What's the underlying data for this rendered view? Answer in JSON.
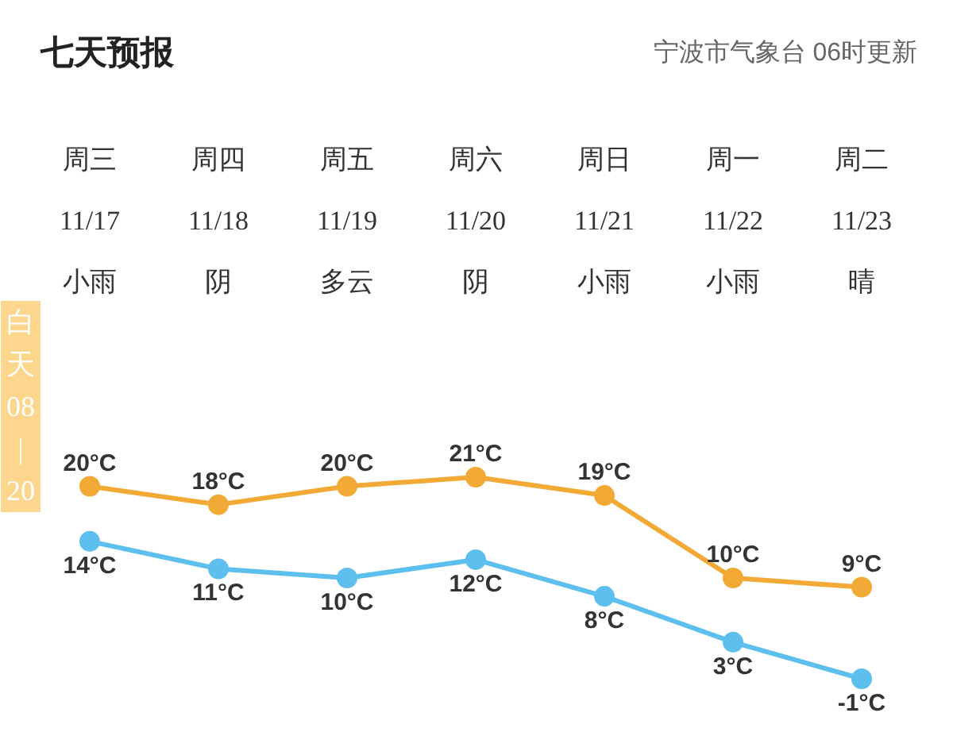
{
  "chart_data": {
    "type": "line",
    "title": "七天预报",
    "subtitle": "宁波市气象台 06时更新",
    "categories": [
      "周三\n11/17\n小雨",
      "周四\n11/18\n阴",
      "周五\n11/19\n多云",
      "周六\n11/20\n阴",
      "周日\n11/21\n小雨",
      "周一\n11/22\n小雨",
      "周二\n11/23\n晴"
    ],
    "series": [
      {
        "color": "#f2a935",
        "values": [
          20,
          18,
          20,
          21,
          19,
          10,
          9
        ],
        "value_labels": [
          "20°C",
          "18°C",
          "20°C",
          "21°C",
          "19°C",
          "10°C",
          "9°C"
        ]
      },
      {
        "color": "#5dbfed",
        "values": [
          14,
          11,
          10,
          12,
          8,
          3,
          -1
        ],
        "value_labels": [
          "14°C",
          "11°C",
          "10°C",
          "12°C",
          "8°C",
          "3°C",
          "-1°C"
        ]
      }
    ],
    "annotations": [
      "白天\n08\n|\n20"
    ],
    "marker": "circle",
    "line_style": "solid",
    "grid": false,
    "tick_labels": "x"
  }
}
